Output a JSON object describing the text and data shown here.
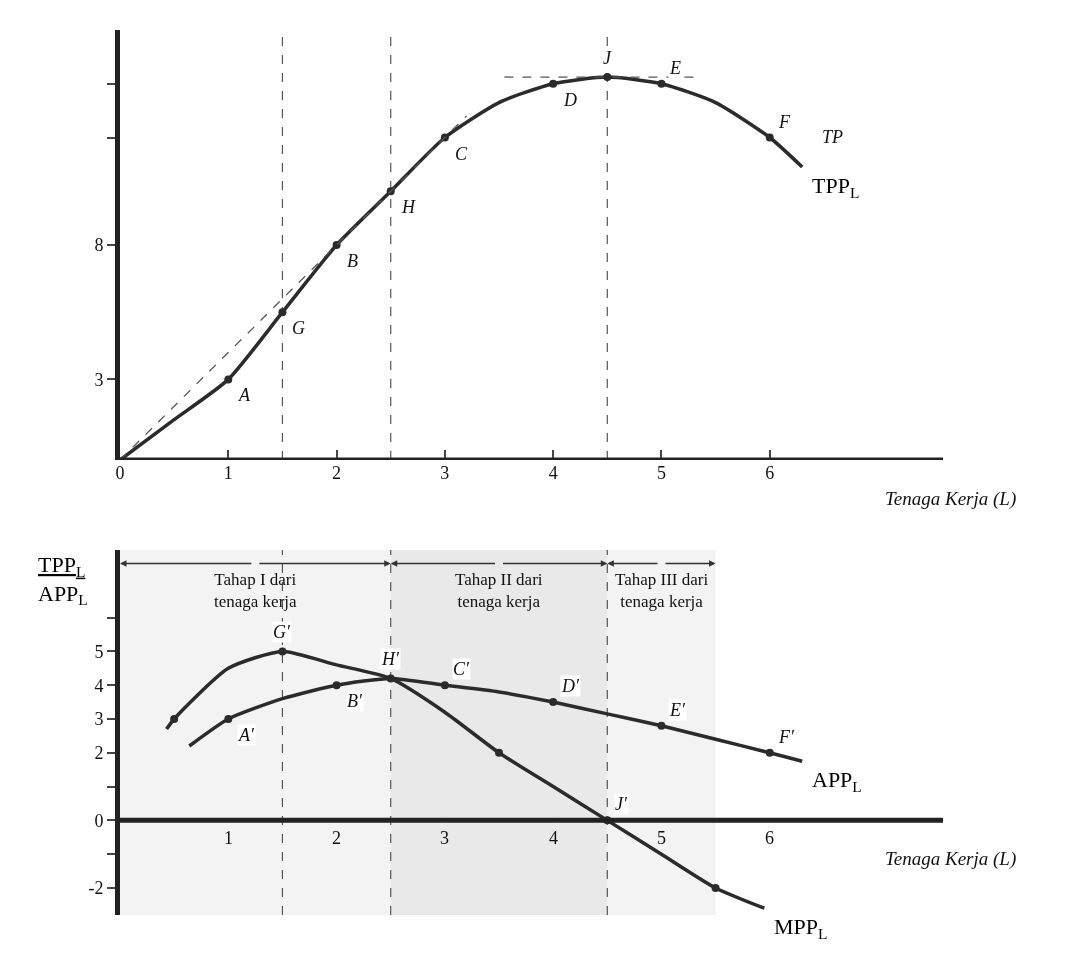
{
  "chart_data": [
    {
      "type": "line",
      "xlabel": "Tenaga Kerja (L)",
      "xlim": [
        0,
        7.6
      ],
      "xticks": [
        0,
        1,
        2,
        3,
        4,
        5,
        6
      ],
      "ylim": [
        0,
        16
      ],
      "yticks": [
        3,
        8,
        {
          "value": 12,
          "label": null
        },
        {
          "value": 14,
          "label": null
        }
      ],
      "series": [
        {
          "name": "TPP$_{L}$",
          "type": "line",
          "color": "#2b2b2b",
          "x": [
            0,
            0.5,
            1,
            1.5,
            2,
            2.5,
            3,
            3.5,
            4,
            4.5,
            5,
            5.5,
            6,
            6.3
          ],
          "values": [
            0,
            1.5,
            3,
            5.5,
            8,
            10,
            12,
            13.3,
            14,
            14.25,
            14,
            13.3,
            12,
            10.9
          ]
        },
        {
          "type": "scatter",
          "marker": "circle",
          "color": "#2b2b2b",
          "x": [
            1,
            1.5,
            2,
            2.5,
            3,
            4,
            4.5,
            5,
            6
          ],
          "values": [
            3,
            5.5,
            8,
            10,
            12,
            14,
            14.25,
            14,
            12
          ]
        },
        {
          "type": "line",
          "line_style": "dashed",
          "color": "#555555",
          "x": [
            0,
            3.2
          ],
          "values": [
            0,
            12.8
          ]
        },
        {
          "type": "line",
          "line_style": "dashed",
          "color": "#555555",
          "x": [
            3.55,
            5.3
          ],
          "values": [
            14.25,
            14.25
          ]
        }
      ],
      "ref_lines": [
        {
          "axis": "x",
          "value": 1.5,
          "line_style": "dashed",
          "color": "#555555"
        },
        {
          "axis": "x",
          "value": 2.5,
          "line_style": "dashed",
          "color": "#555555"
        },
        {
          "axis": "x",
          "value": 4.5,
          "line_style": "dashed",
          "color": "#555555"
        }
      ],
      "annotations": [
        {
          "text": "A",
          "x": 1,
          "y": 3
        },
        {
          "text": "G",
          "x": 1.5,
          "y": 5.5
        },
        {
          "text": "B",
          "x": 2,
          "y": 8
        },
        {
          "text": "H",
          "x": 2.5,
          "y": 10
        },
        {
          "text": "C",
          "x": 3,
          "y": 12
        },
        {
          "text": "D",
          "x": 4,
          "y": 14
        },
        {
          "text": "J",
          "x": 4.5,
          "y": 14.25
        },
        {
          "text": "E",
          "x": 5,
          "y": 14
        },
        {
          "text": "F",
          "x": 6,
          "y": 12
        },
        "TP"
      ]
    },
    {
      "type": "line",
      "xlabel": "Tenaga Kerja (L)",
      "ylabel": "TPP$_{L}$\nAPP$_{L}$",
      "xlim": [
        0,
        7.6
      ],
      "xticks": [
        1,
        2,
        3,
        4,
        5,
        6
      ],
      "ylim": [
        -2.8,
        8
      ],
      "yticks": [
        -2,
        {
          "value": -1,
          "label": null
        },
        0,
        {
          "value": 1,
          "label": null
        },
        2,
        3,
        4,
        5,
        {
          "value": 6,
          "label": null
        }
      ],
      "series": [
        {
          "name": "APP$_{L}$",
          "type": "line",
          "color": "#2b2b2b",
          "x": [
            0.64,
            1,
            1.5,
            2,
            2.5,
            3,
            3.5,
            4,
            4.5,
            5,
            5.5,
            6,
            6.3
          ],
          "values": [
            2.2,
            3,
            3.6,
            4,
            4.2,
            4,
            3.8,
            3.5,
            3.15,
            2.8,
            2.4,
            2,
            1.75
          ]
        },
        {
          "name": "MPP$_{L}$",
          "type": "line",
          "color": "#2b2b2b",
          "x": [
            0.43,
            0.5,
            1,
            1.5,
            2,
            2.5,
            3,
            3.5,
            4,
            4.5,
            5,
            5.5,
            5.95
          ],
          "values": [
            2.7,
            3,
            4.5,
            5,
            4.6,
            4.2,
            3.2,
            2,
            1,
            0,
            -1,
            -2,
            -2.6
          ]
        },
        {
          "type": "scatter",
          "marker": "circle",
          "color": "#2b2b2b",
          "x": [
            1,
            2,
            2.5,
            3,
            4,
            5,
            6
          ],
          "values": [
            3,
            4,
            4.2,
            4,
            3.5,
            2.8,
            2
          ]
        },
        {
          "type": "scatter",
          "marker": "circle",
          "color": "#2b2b2b",
          "x": [
            0.5,
            1.5,
            3.5,
            4.5,
            5.5
          ],
          "values": [
            3,
            5,
            2,
            0,
            -2
          ]
        }
      ],
      "ref_lines": [
        {
          "axis": "x",
          "value": 1.5,
          "line_style": "dashed",
          "color": "#555555"
        },
        {
          "axis": "x",
          "value": 2.5,
          "line_style": "dashed",
          "color": "#555555"
        },
        {
          "axis": "x",
          "value": 4.5,
          "line_style": "dashed",
          "color": "#555555"
        }
      ],
      "bands": [
        {
          "axis": "x",
          "from": 0,
          "to": 2.5,
          "label": "Tahap I dari\ntenaga kerja",
          "color": "#f3f3f3"
        },
        {
          "axis": "x",
          "from": 2.5,
          "to": 4.5,
          "label": "Tahap II dari\ntenaga kerja",
          "color": "#e9e9e9"
        },
        {
          "axis": "x",
          "from": 4.5,
          "to": 5.5,
          "label": "Tahap III dari\ntenaga kerja",
          "color": "#f3f3f3"
        }
      ],
      "annotations": [
        {
          "text": "A′",
          "x": 1,
          "y": 3
        },
        {
          "text": "G′",
          "x": 1.5,
          "y": 5
        },
        {
          "text": "B′",
          "x": 2,
          "y": 4
        },
        {
          "text": "H′",
          "x": 2.5,
          "y": 4.2
        },
        {
          "text": "C′",
          "x": 3,
          "y": 4
        },
        {
          "text": "D′",
          "x": 4,
          "y": 3.5
        },
        {
          "text": "J′",
          "x": 4.5,
          "y": 0
        },
        {
          "text": "E′",
          "x": 5,
          "y": 2.8
        },
        {
          "text": "F′",
          "x": 6,
          "y": 2
        }
      ]
    }
  ]
}
